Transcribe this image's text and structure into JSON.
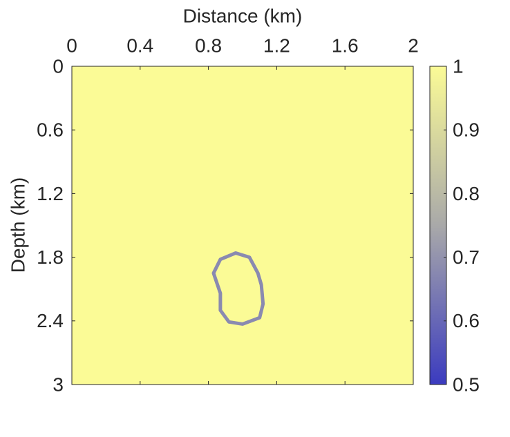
{
  "chart_data": {
    "type": "image",
    "x_label": "Distance (km)",
    "y_label": "Depth (km)",
    "xlim": [
      0,
      2
    ],
    "ylim": [
      3,
      0
    ],
    "xticks": [
      0,
      0.4,
      0.8,
      1.2,
      1.6,
      2
    ],
    "yticks": [
      0,
      0.6,
      1.2,
      1.8,
      2.4,
      3
    ],
    "clim": [
      0.5,
      1
    ],
    "cticks": [
      0.5,
      0.6,
      0.7,
      0.8,
      0.9,
      1
    ],
    "colormap": [
      "#3b3bbf",
      "#a9a9a9",
      "#fbfb96"
    ],
    "background": 1,
    "ring": {
      "value": 0.65,
      "x": [
        0.96,
        1.04,
        1.09,
        1.11,
        1.12,
        1.1,
        1.0,
        0.92,
        0.87,
        0.87,
        0.83,
        0.87
      ],
      "y": [
        1.76,
        1.8,
        1.95,
        2.06,
        2.24,
        2.37,
        2.43,
        2.41,
        2.3,
        2.14,
        1.95,
        1.82
      ]
    }
  }
}
